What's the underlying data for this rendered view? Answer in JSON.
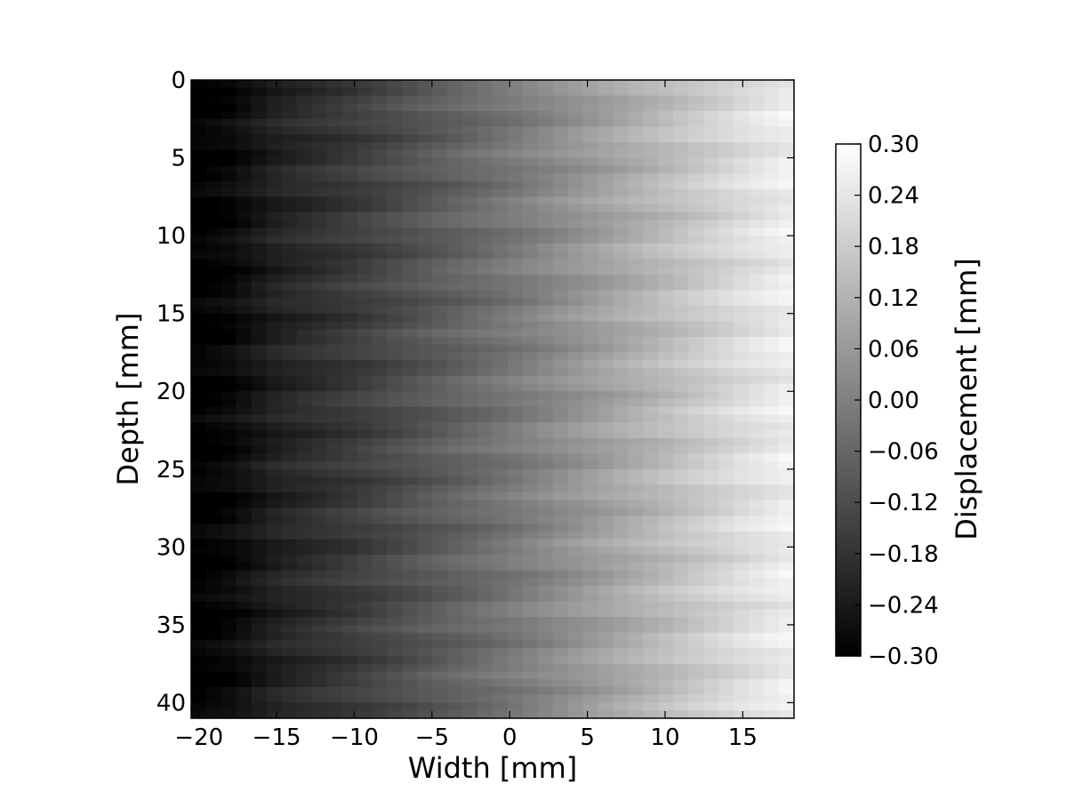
{
  "chart_data": {
    "type": "heatmap",
    "title": "",
    "xlabel": "Width [mm]",
    "ylabel": "Depth [mm]",
    "xlim": [
      -20.5,
      18.3
    ],
    "ylim": [
      41,
      0
    ],
    "x_ticks": [
      -20,
      -15,
      -10,
      -5,
      0,
      5,
      10,
      15
    ],
    "x_tick_labels": [
      "−20",
      "−15",
      "−10",
      "−5",
      "0",
      "5",
      "10",
      "15"
    ],
    "y_ticks": [
      0,
      5,
      10,
      15,
      20,
      25,
      30,
      35,
      40
    ],
    "y_tick_labels": [
      "0",
      "5",
      "10",
      "15",
      "20",
      "25",
      "30",
      "35",
      "40"
    ],
    "grid": false,
    "colormap": "gray",
    "colorbar": {
      "label": "Displacement [mm]",
      "range": [
        -0.3,
        0.3
      ],
      "ticks": [
        0.3,
        0.24,
        0.18,
        0.12,
        0.06,
        0.0,
        -0.06,
        -0.12,
        -0.18,
        -0.24,
        -0.3
      ],
      "tick_labels": [
        "0.30",
        "0.24",
        "0.18",
        "0.12",
        "0.06",
        "0.00",
        "−0.06",
        "−0.12",
        "−0.18",
        "−0.24",
        "−0.30"
      ]
    },
    "width_profile": {
      "x": [
        -20,
        -18,
        -15,
        -10,
        -5,
        0,
        5,
        10,
        15,
        18
      ],
      "displacement": [
        -0.3,
        -0.28,
        -0.22,
        -0.16,
        -0.09,
        -0.02,
        0.06,
        0.14,
        0.22,
        0.26
      ]
    }
  }
}
